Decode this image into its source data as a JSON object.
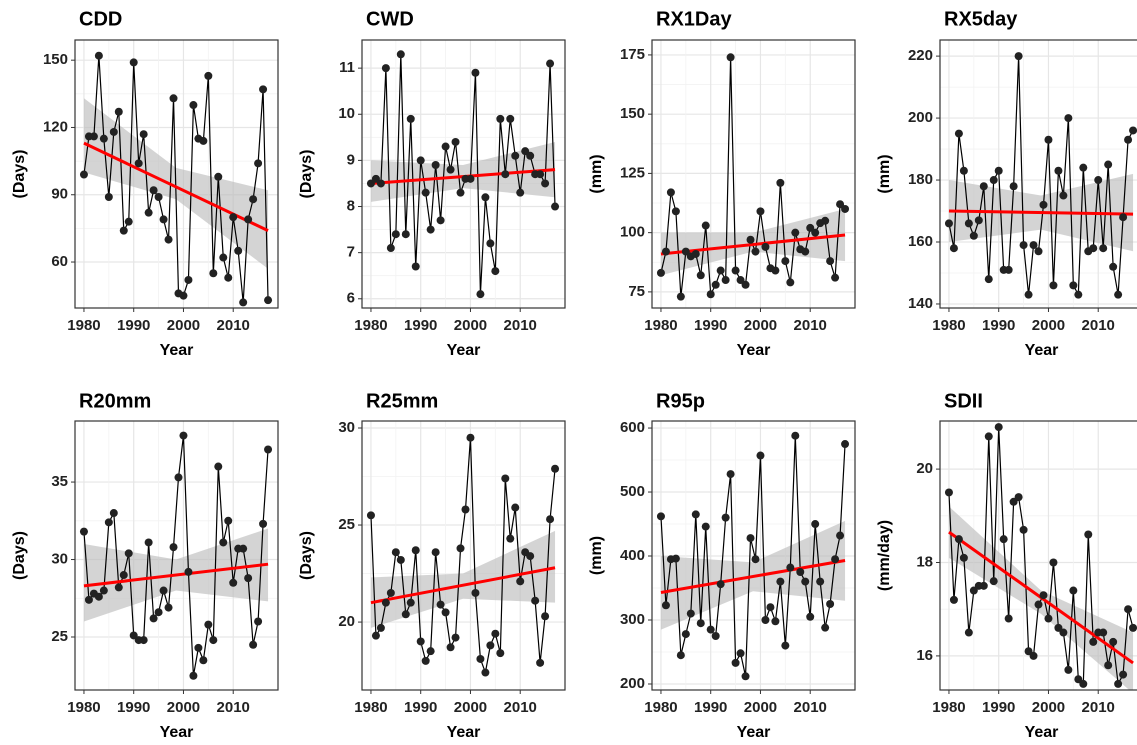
{
  "chart_data": [
    {
      "type": "line",
      "title": "CDD",
      "x_label": "Year",
      "y_label": "(Days)",
      "x": [
        1980,
        1981,
        1982,
        1983,
        1984,
        1985,
        1986,
        1987,
        1988,
        1989,
        1990,
        1991,
        1992,
        1993,
        1994,
        1995,
        1996,
        1997,
        1998,
        1999,
        2000,
        2001,
        2002,
        2003,
        2004,
        2005,
        2006,
        2007,
        2008,
        2009,
        2010,
        2011,
        2012,
        2013,
        2014,
        2015,
        2016,
        2017
      ],
      "values": [
        99,
        116,
        116,
        152,
        115,
        89,
        118,
        127,
        74,
        78,
        149,
        104,
        117,
        82,
        92,
        89,
        79,
        70,
        133,
        46,
        45,
        52,
        130,
        115,
        114,
        143,
        55,
        98,
        62,
        53,
        80,
        65,
        42,
        79,
        88,
        104,
        137,
        43
      ],
      "xlim": [
        1978.2,
        2019
      ],
      "xticks": [
        1980,
        1990,
        2000,
        2010
      ],
      "ylim": [
        39.5,
        159
      ],
      "yticks": [
        60,
        90,
        120,
        150
      ],
      "trend_line": {
        "x": [
          1980,
          2017
        ],
        "values": [
          113,
          74
        ],
        "color": "#ff0000"
      },
      "confidence_band": {
        "x": [
          1980,
          1998.5,
          2017
        ],
        "lower": [
          100,
          88,
          57
        ],
        "upper": [
          133,
          102,
          92
        ],
        "color": "#bdbdbd"
      },
      "color": "#222222",
      "grid": true
    },
    {
      "type": "line",
      "title": "CWD",
      "x_label": "Year",
      "y_label": "(Days)",
      "x": [
        1980,
        1981,
        1982,
        1983,
        1984,
        1985,
        1986,
        1987,
        1988,
        1989,
        1990,
        1991,
        1992,
        1993,
        1994,
        1995,
        1996,
        1997,
        1998,
        1999,
        2000,
        2001,
        2002,
        2003,
        2004,
        2005,
        2006,
        2007,
        2008,
        2009,
        2010,
        2011,
        2012,
        2013,
        2014,
        2015,
        2016,
        2017
      ],
      "values": [
        8.5,
        8.6,
        8.5,
        11.0,
        7.1,
        7.4,
        11.3,
        7.4,
        9.9,
        6.7,
        9.0,
        8.3,
        7.5,
        8.9,
        7.7,
        9.3,
        8.8,
        9.4,
        8.3,
        8.6,
        8.6,
        10.9,
        6.1,
        8.2,
        7.2,
        6.6,
        9.9,
        8.7,
        9.9,
        9.1,
        8.3,
        9.2,
        9.1,
        8.7,
        8.7,
        8.5,
        11.1,
        8.0
      ],
      "xlim": [
        1978.2,
        2019
      ],
      "xticks": [
        1980,
        1990,
        2000,
        2010
      ],
      "ylim": [
        5.8,
        11.61
      ],
      "yticks": [
        6,
        7,
        8,
        9,
        10,
        11
      ],
      "trend_line": {
        "x": [
          1980,
          2017
        ],
        "values": [
          8.5,
          8.8
        ],
        "color": "#ff0000"
      },
      "confidence_band": {
        "x": [
          1980,
          1998.5,
          2017
        ],
        "lower": [
          8.1,
          8.4,
          8.2
        ],
        "upper": [
          9.0,
          8.9,
          9.4
        ],
        "color": "#bdbdbd"
      },
      "color": "#222222",
      "grid": true
    },
    {
      "type": "line",
      "title": "RX1Day",
      "x_label": "Year",
      "y_label": "(mm)",
      "x": [
        1980,
        1981,
        1982,
        1983,
        1984,
        1985,
        1986,
        1987,
        1988,
        1989,
        1990,
        1991,
        1992,
        1993,
        1994,
        1995,
        1996,
        1997,
        1998,
        1999,
        2000,
        2001,
        2002,
        2003,
        2004,
        2005,
        2006,
        2007,
        2008,
        2009,
        2010,
        2011,
        2012,
        2013,
        2014,
        2015,
        2016,
        2017
      ],
      "values": [
        83,
        92,
        117,
        109,
        73,
        92,
        90,
        91,
        82,
        103,
        74,
        78,
        84,
        80,
        174,
        84,
        80,
        78,
        97,
        92,
        109,
        94,
        85,
        84,
        121,
        88,
        79,
        100,
        93,
        92,
        102,
        100,
        104,
        105,
        88,
        81,
        112,
        110
      ],
      "xlim": [
        1978.2,
        2019
      ],
      "xticks": [
        1980,
        1990,
        2000,
        2010
      ],
      "ylim": [
        68.2,
        181.3
      ],
      "yticks": [
        75,
        100,
        125,
        150,
        175
      ],
      "trend_line": {
        "x": [
          1980,
          2017
        ],
        "values": [
          91,
          99
        ],
        "color": "#ff0000"
      },
      "confidence_band": {
        "x": [
          1980,
          1998.5,
          2017
        ],
        "lower": [
          82,
          92,
          88
        ],
        "upper": [
          100,
          100,
          110
        ],
        "color": "#bdbdbd"
      },
      "color": "#222222",
      "grid": true
    },
    {
      "type": "line",
      "title": "RX5day",
      "x_label": "Year",
      "y_label": "(mm)",
      "x": [
        1980,
        1981,
        1982,
        1983,
        1984,
        1985,
        1986,
        1987,
        1988,
        1989,
        1990,
        1991,
        1992,
        1993,
        1994,
        1995,
        1996,
        1997,
        1998,
        1999,
        2000,
        2001,
        2002,
        2003,
        2004,
        2005,
        2006,
        2007,
        2008,
        2009,
        2010,
        2011,
        2012,
        2013,
        2014,
        2015,
        2016,
        2017
      ],
      "values": [
        166,
        158,
        195,
        183,
        166,
        162,
        167,
        178,
        148,
        180,
        183,
        151,
        151,
        178,
        220,
        159,
        143,
        159,
        157,
        172,
        193,
        146,
        183,
        175,
        200,
        146,
        143,
        184,
        157,
        158,
        180,
        158,
        185,
        152,
        143,
        168,
        193,
        196
      ],
      "xlim": [
        1978.2,
        2019
      ],
      "xticks": [
        1980,
        1990,
        2000,
        2010
      ],
      "ylim": [
        138.7,
        225.2
      ],
      "yticks": [
        140,
        160,
        180,
        200,
        220
      ],
      "trend_line": {
        "x": [
          1980,
          2017
        ],
        "values": [
          170,
          169
        ],
        "color": "#ff0000"
      },
      "confidence_band": {
        "x": [
          1980,
          1998.5,
          2017
        ],
        "lower": [
          160,
          164,
          157
        ],
        "upper": [
          180,
          175,
          182
        ],
        "color": "#bdbdbd"
      },
      "color": "#222222",
      "grid": true
    },
    {
      "type": "line",
      "title": "R20mm",
      "x_label": "Year",
      "y_label": "(Days)",
      "x": [
        1980,
        1981,
        1982,
        1983,
        1984,
        1985,
        1986,
        1987,
        1988,
        1989,
        1990,
        1991,
        1992,
        1993,
        1994,
        1995,
        1996,
        1997,
        1998,
        1999,
        2000,
        2001,
        2002,
        2003,
        2004,
        2005,
        2006,
        2007,
        2008,
        2009,
        2010,
        2011,
        2012,
        2013,
        2014,
        2015,
        2016,
        2017
      ],
      "values": [
        31.8,
        27.4,
        27.8,
        27.6,
        28.0,
        32.4,
        33.0,
        28.2,
        29.0,
        30.4,
        25.1,
        24.8,
        24.8,
        31.1,
        26.2,
        26.6,
        28.0,
        26.9,
        30.8,
        35.3,
        38.0,
        29.2,
        22.5,
        24.3,
        23.5,
        25.8,
        24.8,
        36.0,
        31.1,
        32.5,
        28.5,
        30.7,
        30.7,
        28.8,
        24.5,
        26.0,
        32.3,
        37.1
      ],
      "xlim": [
        1978.2,
        2019
      ],
      "xticks": [
        1980,
        1990,
        2000,
        2010
      ],
      "ylim": [
        21.58,
        38.94
      ],
      "yticks": [
        25,
        30,
        35
      ],
      "trend_line": {
        "x": [
          1980,
          2017
        ],
        "values": [
          28.3,
          29.7
        ],
        "color": "#ff0000"
      },
      "confidence_band": {
        "x": [
          1980,
          1998.5,
          2017
        ],
        "lower": [
          26.0,
          28.0,
          27.3
        ],
        "upper": [
          31.0,
          30.0,
          32.0
        ],
        "color": "#bdbdbd"
      },
      "color": "#222222",
      "grid": true
    },
    {
      "type": "line",
      "title": "R25mm",
      "x_label": "Year",
      "y_label": "(Days)",
      "x": [
        1980,
        1981,
        1982,
        1983,
        1984,
        1985,
        1986,
        1987,
        1988,
        1989,
        1990,
        1991,
        1992,
        1993,
        1994,
        1995,
        1996,
        1997,
        1998,
        1999,
        2000,
        2001,
        2002,
        2003,
        2004,
        2005,
        2006,
        2007,
        2008,
        2009,
        2010,
        2011,
        2012,
        2013,
        2014,
        2015,
        2016,
        2017
      ],
      "values": [
        25.5,
        19.3,
        19.7,
        21.0,
        21.5,
        23.6,
        23.2,
        20.4,
        21.0,
        23.7,
        19.0,
        18.0,
        18.5,
        23.6,
        20.9,
        20.5,
        18.7,
        19.2,
        23.8,
        25.8,
        29.5,
        21.5,
        18.1,
        17.4,
        18.8,
        19.4,
        18.4,
        27.4,
        24.3,
        25.9,
        22.1,
        23.6,
        23.4,
        21.1,
        17.9,
        20.3,
        25.3,
        27.9
      ],
      "xlim": [
        1978.2,
        2019
      ],
      "xticks": [
        1980,
        1990,
        2000,
        2010
      ],
      "ylim": [
        16.5,
        30.36
      ],
      "yticks": [
        20,
        25,
        30
      ],
      "trend_line": {
        "x": [
          1980,
          2017
        ],
        "values": [
          21.0,
          22.8
        ],
        "color": "#ff0000"
      },
      "confidence_band": {
        "x": [
          1980,
          1998.5,
          2017
        ],
        "lower": [
          19.7,
          21.2,
          21.0
        ],
        "upper": [
          22.3,
          22.5,
          24.7
        ],
        "color": "#bdbdbd"
      },
      "color": "#222222",
      "grid": true
    },
    {
      "type": "line",
      "title": "R95p",
      "x_label": "Year",
      "y_label": "(mm)",
      "x": [
        1980,
        1981,
        1982,
        1983,
        1984,
        1985,
        1986,
        1987,
        1988,
        1989,
        1990,
        1991,
        1992,
        1993,
        1994,
        1995,
        1996,
        1997,
        1998,
        1999,
        2000,
        2001,
        2002,
        2003,
        2004,
        2005,
        2006,
        2007,
        2008,
        2009,
        2010,
        2011,
        2012,
        2013,
        2014,
        2015,
        2016,
        2017
      ],
      "values": [
        462,
        323,
        395,
        396,
        245,
        278,
        310,
        465,
        295,
        446,
        285,
        275,
        356,
        460,
        528,
        233,
        248,
        212,
        428,
        395,
        557,
        300,
        320,
        298,
        360,
        260,
        382,
        588,
        375,
        360,
        305,
        450,
        360,
        288,
        325,
        395,
        432,
        575
      ],
      "xlim": [
        1978.2,
        2019
      ],
      "xticks": [
        1980,
        1990,
        2000,
        2010
      ],
      "ylim": [
        190.6,
        611
      ],
      "yticks": [
        200,
        300,
        400,
        500,
        600
      ],
      "trend_line": {
        "x": [
          1980,
          2017
        ],
        "values": [
          343,
          393
        ],
        "color": "#ff0000"
      },
      "confidence_band": {
        "x": [
          1980,
          1998.5,
          2017
        ],
        "lower": [
          285,
          345,
          330
        ],
        "upper": [
          400,
          390,
          455
        ],
        "color": "#bdbdbd"
      },
      "color": "#222222",
      "grid": true
    },
    {
      "type": "line",
      "title": "SDII",
      "x_label": "Year",
      "y_label": "(mm/day)",
      "x": [
        1980,
        1981,
        1982,
        1983,
        1984,
        1985,
        1986,
        1987,
        1988,
        1989,
        1990,
        1991,
        1992,
        1993,
        1994,
        1995,
        1996,
        1997,
        1998,
        1999,
        2000,
        2001,
        2002,
        2003,
        2004,
        2005,
        2006,
        2007,
        2008,
        2009,
        2010,
        2011,
        2012,
        2013,
        2014,
        2015,
        2016,
        2017
      ],
      "values": [
        19.5,
        17.2,
        18.5,
        18.1,
        16.5,
        17.4,
        17.5,
        17.5,
        20.7,
        17.6,
        20.9,
        18.5,
        16.8,
        19.3,
        19.4,
        18.7,
        16.1,
        16.0,
        17.1,
        17.3,
        16.8,
        18.0,
        16.6,
        16.5,
        15.7,
        17.4,
        15.5,
        15.4,
        18.6,
        16.3,
        16.5,
        16.5,
        15.8,
        16.3,
        15.4,
        15.6,
        17.0,
        16.6
      ],
      "xlim": [
        1978.2,
        2019
      ],
      "xticks": [
        1980,
        1990,
        2000,
        2010
      ],
      "ylim": [
        15.27,
        21.03
      ],
      "yticks": [
        16,
        18,
        20
      ],
      "trend_line": {
        "x": [
          1980,
          2017
        ],
        "values": [
          18.65,
          15.85
        ],
        "color": "#ff0000"
      },
      "confidence_band": {
        "x": [
          1980,
          1998.5,
          2017
        ],
        "lower": [
          18.1,
          16.9,
          15.2
        ],
        "upper": [
          19.2,
          17.4,
          16.5
        ],
        "color": "#bdbdbd"
      },
      "color": "#222222",
      "grid": true
    }
  ]
}
